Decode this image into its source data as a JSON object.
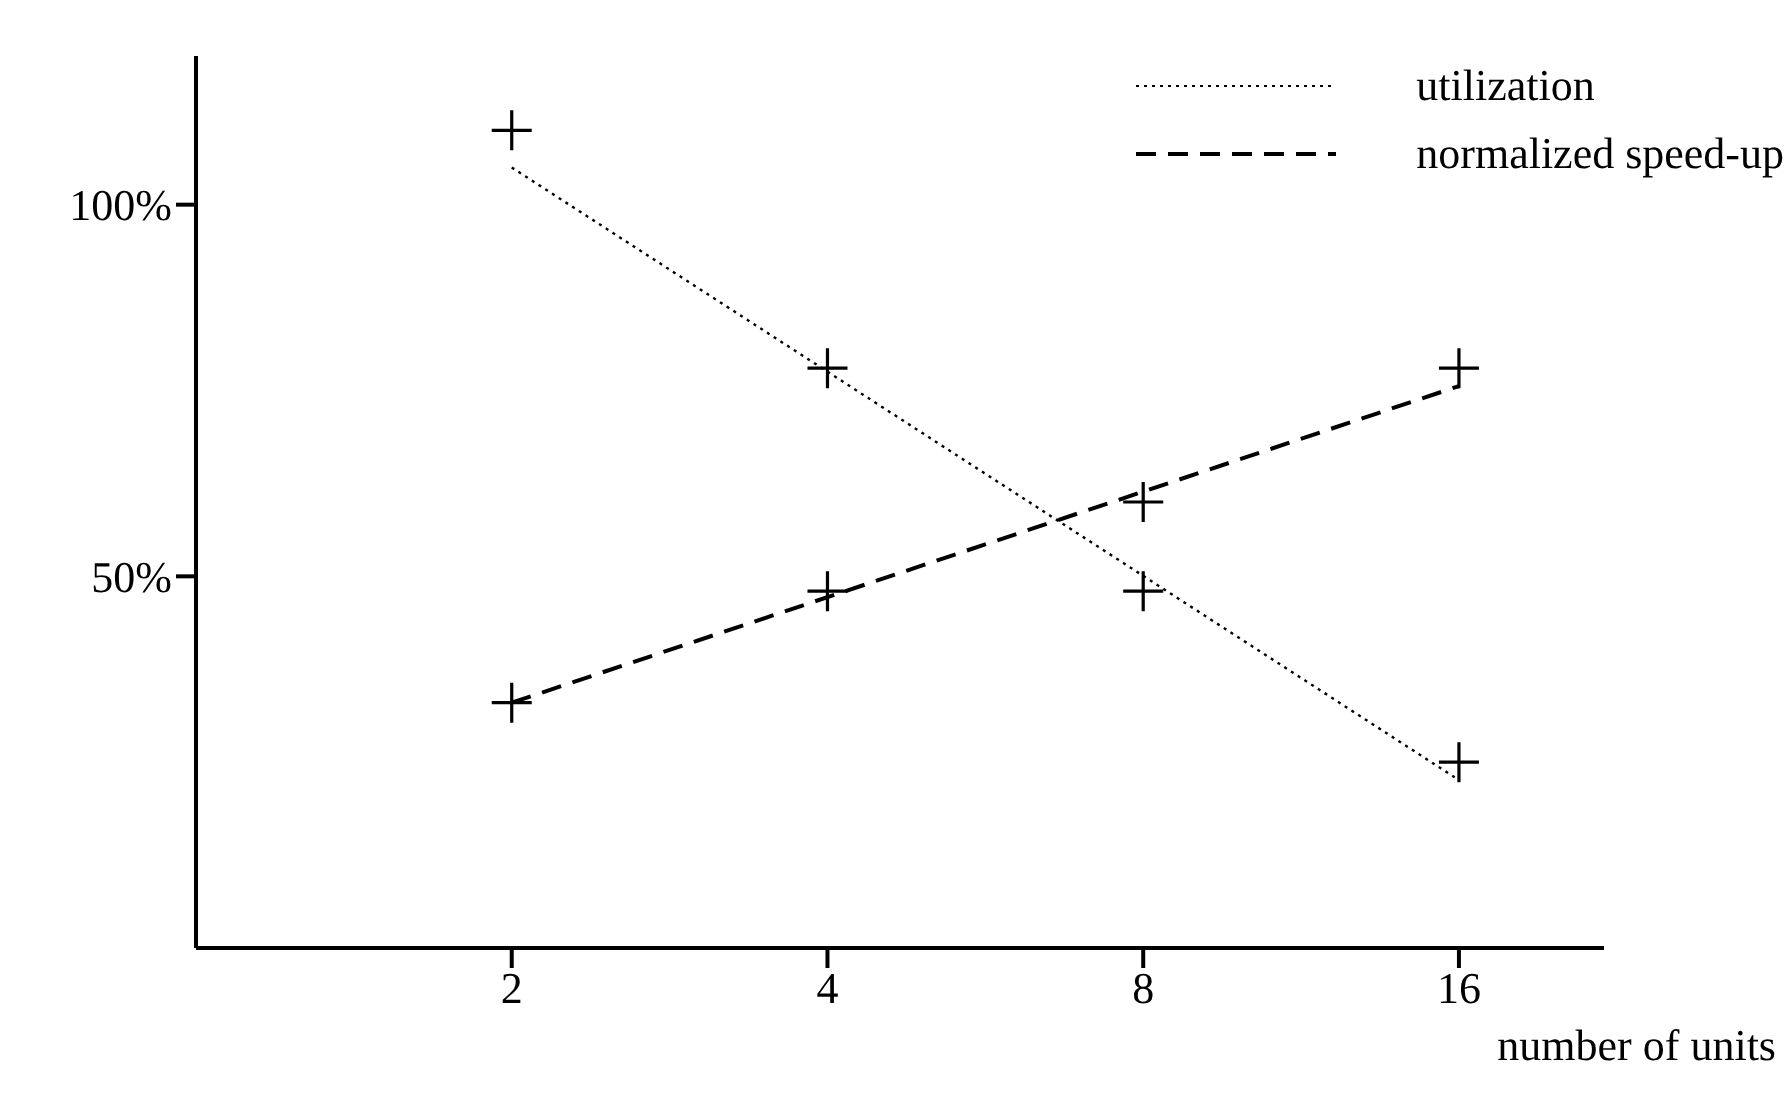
{
  "chart_data": {
    "type": "line",
    "xlabel": "number of units",
    "log": "x",
    "xlim": [
      1,
      22
    ],
    "xticks": [
      2,
      4,
      8,
      16
    ],
    "ylim": [
      0,
      120
    ],
    "yticks": [
      {
        "value": 50,
        "label": "50%"
      },
      {
        "value": 100,
        "label": "100%"
      }
    ],
    "grid": false,
    "legend": "top right",
    "series": [
      {
        "type": "scatter",
        "color": "#000000",
        "marker": "cross",
        "x": [
          2,
          4,
          8,
          16
        ],
        "values": [
          110,
          78,
          48,
          25
        ]
      },
      {
        "type": "scatter",
        "color": "#000000",
        "marker": "cross",
        "x": [
          2,
          4,
          8,
          16
        ],
        "values": [
          33,
          48,
          60,
          78
        ]
      },
      {
        "type": "line",
        "name": "utilization",
        "color": "#000000",
        "line_style": "dotted",
        "marker": "none",
        "x": [
          2,
          16
        ],
        "values": [
          105,
          22.6
        ]
      },
      {
        "type": "line",
        "name": "normalized speed-up",
        "color": "#000000",
        "line_style": "dashed",
        "marker": "none",
        "x": [
          2,
          16
        ],
        "values": [
          33,
          75.6
        ]
      }
    ]
  }
}
